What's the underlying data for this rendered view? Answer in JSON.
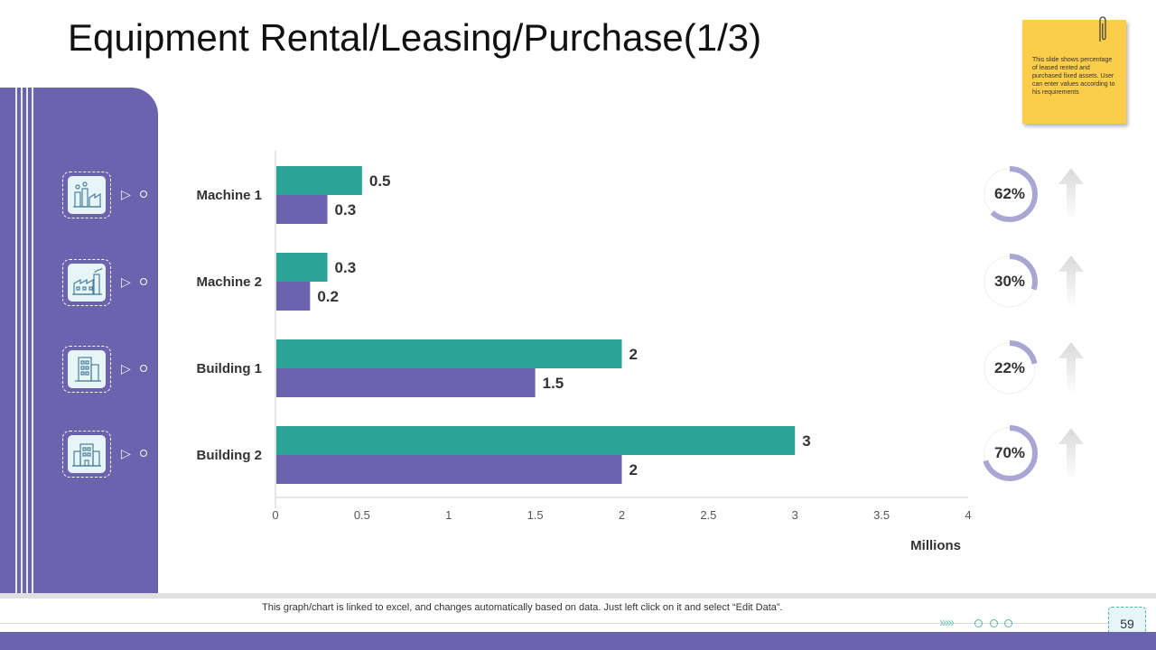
{
  "title": "Equipment Rental/Leasing/Purchase(1/3)",
  "note": "This slide shows percentage of leased rented and purchased fixed assets. User can enter values according to his requirements",
  "caption": "This graph/chart is linked to excel, and changes automatically based on data. Just left click on it and select “Edit Data”.",
  "page_number": "59",
  "icons": [
    "factory-icon",
    "factory-smoke-icon",
    "building-icon",
    "office-building-icon"
  ],
  "percentages": [
    {
      "label": "62%",
      "value": 62
    },
    {
      "label": "30%",
      "value": 30
    },
    {
      "label": "22%",
      "value": 22
    },
    {
      "label": "70%",
      "value": 70
    }
  ],
  "colors": {
    "teal": "#2aa597",
    "purple": "#6b63ae",
    "note": "#fccd48",
    "ring_track": "#eeeeee"
  },
  "chart_data": {
    "type": "bar",
    "orientation": "horizontal",
    "categories": [
      "Machine 1",
      "Machine 2",
      "Building 1",
      "Building 2"
    ],
    "series": [
      {
        "values": [
          0.5,
          0.3,
          2,
          3
        ],
        "color": "#2aa597"
      },
      {
        "values": [
          0.3,
          0.2,
          1.5,
          2
        ],
        "color": "#6b63ae"
      }
    ],
    "xlabel": "Millions",
    "xlim": [
      0,
      4
    ],
    "xticks": [
      "0",
      "0.5",
      "1",
      "1.5",
      "2",
      "2.5",
      "3",
      "3.5",
      "4"
    ],
    "data_labels": [
      [
        "0.5",
        "0.3",
        "2",
        "3"
      ],
      [
        "0.3",
        "0.2",
        "1.5",
        "2"
      ]
    ],
    "grid": false,
    "legend": "none"
  }
}
